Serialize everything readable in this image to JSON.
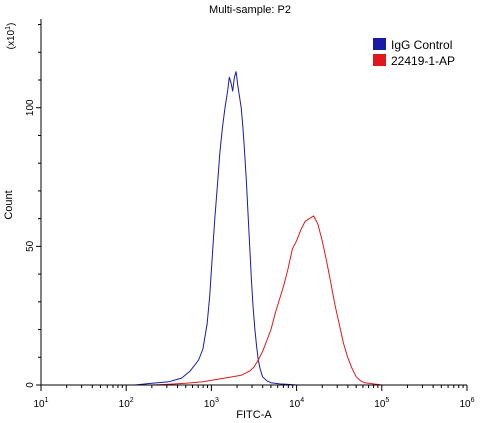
{
  "chart_data": {
    "type": "line",
    "title": "Multi-sample: P2",
    "xlabel": "FITC-A",
    "ylabel": "Count",
    "y_multiplier_base": "(x10",
    "y_multiplier_exp": "1",
    "y_multiplier_close": ")",
    "x_scale": "log",
    "xlim": [
      10,
      1000000
    ],
    "ylim": [
      0,
      132
    ],
    "x_ticks": [
      {
        "base": "10",
        "exp": "1",
        "value": 10
      },
      {
        "base": "10",
        "exp": "2",
        "value": 100
      },
      {
        "base": "10",
        "exp": "3",
        "value": 1000
      },
      {
        "base": "10",
        "exp": "4",
        "value": 10000
      },
      {
        "base": "10",
        "exp": "5",
        "value": 100000
      },
      {
        "base": "10",
        "exp": "6",
        "value": 1000000
      }
    ],
    "y_ticks": [
      {
        "label": "0",
        "value": 0
      },
      {
        "label": "50",
        "value": 50
      },
      {
        "label": "100",
        "value": 100
      }
    ],
    "legend_position": "top-right",
    "series": [
      {
        "name": "IgG Control",
        "color": "#1a1aa8",
        "points": [
          [
            10,
            0
          ],
          [
            126,
            0
          ],
          [
            200,
            0.6
          ],
          [
            316,
            1.2
          ],
          [
            447,
            2.5
          ],
          [
            562,
            5
          ],
          [
            708,
            9
          ],
          [
            794,
            13
          ],
          [
            891,
            22
          ],
          [
            955,
            32
          ],
          [
            1023,
            46
          ],
          [
            1096,
            60
          ],
          [
            1175,
            72
          ],
          [
            1259,
            84
          ],
          [
            1349,
            93
          ],
          [
            1445,
            100
          ],
          [
            1549,
            106
          ],
          [
            1622,
            111
          ],
          [
            1698,
            109
          ],
          [
            1778,
            106
          ],
          [
            1862,
            111
          ],
          [
            1950,
            113
          ],
          [
            2042,
            108
          ],
          [
            2138,
            104
          ],
          [
            2239,
            100
          ],
          [
            2344,
            93
          ],
          [
            2455,
            84
          ],
          [
            2570,
            74
          ],
          [
            2692,
            62
          ],
          [
            2818,
            50
          ],
          [
            2951,
            38
          ],
          [
            3090,
            28
          ],
          [
            3236,
            20
          ],
          [
            3388,
            14
          ],
          [
            3548,
            9
          ],
          [
            3715,
            6
          ],
          [
            3981,
            3
          ],
          [
            4467,
            1.5
          ],
          [
            5012,
            0.8
          ],
          [
            6310,
            0.4
          ],
          [
            7943,
            0.2
          ],
          [
            10000,
            0
          ]
        ]
      },
      {
        "name": "22419-1-AP",
        "color": "#e0181d",
        "points": [
          [
            10,
            0
          ],
          [
            200,
            0
          ],
          [
            316,
            0.3
          ],
          [
            501,
            0.6
          ],
          [
            794,
            1.2
          ],
          [
            1259,
            2.2
          ],
          [
            1778,
            3
          ],
          [
            2239,
            3.5
          ],
          [
            2818,
            5
          ],
          [
            3162,
            6.5
          ],
          [
            3548,
            9
          ],
          [
            3981,
            12
          ],
          [
            4467,
            16
          ],
          [
            5012,
            20
          ],
          [
            5623,
            26
          ],
          [
            6310,
            31
          ],
          [
            7079,
            36
          ],
          [
            7943,
            42
          ],
          [
            8913,
            49
          ],
          [
            10000,
            52
          ],
          [
            11220,
            56
          ],
          [
            12589,
            59
          ],
          [
            14125,
            60
          ],
          [
            15849,
            61
          ],
          [
            17783,
            58
          ],
          [
            19953,
            52
          ],
          [
            22387,
            45
          ],
          [
            25119,
            37
          ],
          [
            28184,
            29
          ],
          [
            31623,
            22
          ],
          [
            35481,
            15
          ],
          [
            39811,
            10
          ],
          [
            44668,
            6
          ],
          [
            50119,
            3
          ],
          [
            56234,
            1.5
          ],
          [
            63096,
            0.8
          ],
          [
            79433,
            0.4
          ],
          [
            100000,
            0
          ]
        ]
      }
    ]
  }
}
